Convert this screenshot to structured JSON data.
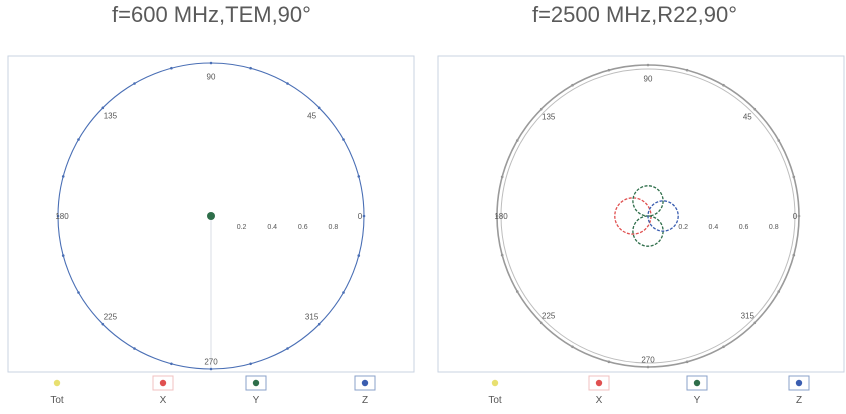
{
  "chart_data": [
    {
      "type": "polar",
      "title": "f=600 MHz,TEM,90°",
      "angle_ticks": [
        "90",
        "45",
        "0",
        "315",
        "270",
        "225",
        "180",
        "135"
      ],
      "radial_ticks": [
        "0.2",
        "0.4",
        "0.6",
        "0.8"
      ],
      "radial_range": [
        0,
        1
      ],
      "legend": [
        "Tot",
        "X",
        "Y",
        "Z"
      ],
      "legend_colors": {
        "Tot": "#e8e070",
        "X": "#e05050",
        "Y": "#2e6e4a",
        "Z": "#3a5db0"
      },
      "series": [
        {
          "name": "Z",
          "shape": "circle",
          "center_angle_deg": 0,
          "center_r": 0.0,
          "radius": 1.0
        },
        {
          "name": "Y",
          "shape": "dot",
          "center_angle_deg": 0,
          "center_r": 0.0,
          "radius": 0.02
        }
      ]
    },
    {
      "type": "polar",
      "title": "f=2500 MHz,R22,90°",
      "angle_ticks": [
        "90",
        "45",
        "0",
        "315",
        "270",
        "225",
        "180",
        "135"
      ],
      "radial_ticks": [
        "0.2",
        "0.4",
        "0.6",
        "0.8"
      ],
      "radial_range": [
        0,
        1
      ],
      "legend": [
        "Tot",
        "X",
        "Y",
        "Z"
      ],
      "legend_colors": {
        "Tot": "#e8e070",
        "X": "#e05050",
        "Y": "#2e6e4a",
        "Z": "#3a5db0"
      },
      "series": [
        {
          "name": "Tot",
          "shape": "circle",
          "center_angle_deg": 0,
          "center_r": 0.0,
          "radius": 1.0
        },
        {
          "name": "X",
          "shape": "circle",
          "center_angle_deg": 180,
          "center_r": 0.1,
          "radius": 0.12
        },
        {
          "name": "Y",
          "shape": "circle",
          "center_angle_deg": 90,
          "center_r": 0.1,
          "radius": 0.1
        },
        {
          "name": "Y",
          "shape": "circle",
          "center_angle_deg": 270,
          "center_r": 0.1,
          "radius": 0.1
        },
        {
          "name": "Z",
          "shape": "circle",
          "center_angle_deg": 0,
          "center_r": 0.1,
          "radius": 0.1
        }
      ]
    }
  ]
}
